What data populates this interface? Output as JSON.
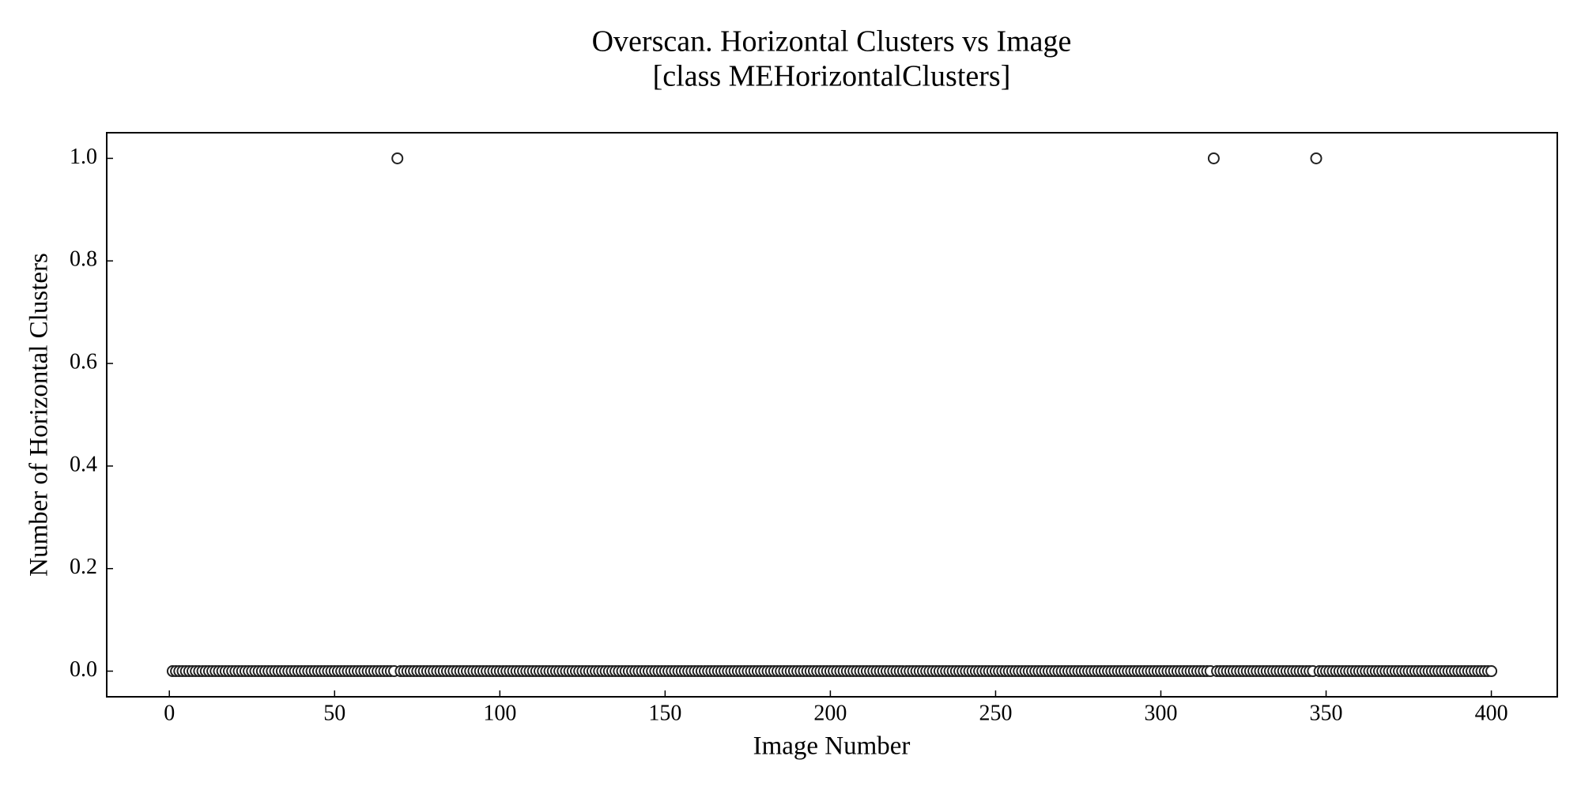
{
  "chart_data": {
    "type": "scatter",
    "title": "Overscan. Horizontal Clusters vs Image",
    "subtitle": "[class MEHorizontalClusters]",
    "x_label": "Image Number",
    "y_label": "Number of Horizontal Clusters",
    "marker_edge_color": "#222222",
    "marker_face_color": "#ffffff",
    "x": [
      1,
      2,
      3,
      4,
      5,
      6,
      7,
      8,
      9,
      10,
      11,
      12,
      13,
      14,
      15,
      16,
      17,
      18,
      19,
      20,
      21,
      22,
      23,
      24,
      25,
      26,
      27,
      28,
      29,
      30,
      31,
      32,
      33,
      34,
      35,
      36,
      37,
      38,
      39,
      40,
      41,
      42,
      43,
      44,
      45,
      46,
      47,
      48,
      49,
      50,
      51,
      52,
      53,
      54,
      55,
      56,
      57,
      58,
      59,
      60,
      61,
      62,
      63,
      64,
      65,
      66,
      67,
      68,
      69,
      70,
      71,
      72,
      73,
      74,
      75,
      76,
      77,
      78,
      79,
      80,
      81,
      82,
      83,
      84,
      85,
      86,
      87,
      88,
      89,
      90,
      91,
      92,
      93,
      94,
      95,
      96,
      97,
      98,
      99,
      100,
      101,
      102,
      103,
      104,
      105,
      106,
      107,
      108,
      109,
      110,
      111,
      112,
      113,
      114,
      115,
      116,
      117,
      118,
      119,
      120,
      121,
      122,
      123,
      124,
      125,
      126,
      127,
      128,
      129,
      130,
      131,
      132,
      133,
      134,
      135,
      136,
      137,
      138,
      139,
      140,
      141,
      142,
      143,
      144,
      145,
      146,
      147,
      148,
      149,
      150,
      151,
      152,
      153,
      154,
      155,
      156,
      157,
      158,
      159,
      160,
      161,
      162,
      163,
      164,
      165,
      166,
      167,
      168,
      169,
      170,
      171,
      172,
      173,
      174,
      175,
      176,
      177,
      178,
      179,
      180,
      181,
      182,
      183,
      184,
      185,
      186,
      187,
      188,
      189,
      190,
      191,
      192,
      193,
      194,
      195,
      196,
      197,
      198,
      199,
      200,
      201,
      202,
      203,
      204,
      205,
      206,
      207,
      208,
      209,
      210,
      211,
      212,
      213,
      214,
      215,
      216,
      217,
      218,
      219,
      220,
      221,
      222,
      223,
      224,
      225,
      226,
      227,
      228,
      229,
      230,
      231,
      232,
      233,
      234,
      235,
      236,
      237,
      238,
      239,
      240,
      241,
      242,
      243,
      244,
      245,
      246,
      247,
      248,
      249,
      250,
      251,
      252,
      253,
      254,
      255,
      256,
      257,
      258,
      259,
      260,
      261,
      262,
      263,
      264,
      265,
      266,
      267,
      268,
      269,
      270,
      271,
      272,
      273,
      274,
      275,
      276,
      277,
      278,
      279,
      280,
      281,
      282,
      283,
      284,
      285,
      286,
      287,
      288,
      289,
      290,
      291,
      292,
      293,
      294,
      295,
      296,
      297,
      298,
      299,
      300,
      301,
      302,
      303,
      304,
      305,
      306,
      307,
      308,
      309,
      310,
      311,
      312,
      313,
      314,
      315,
      316,
      317,
      318,
      319,
      320,
      321,
      322,
      323,
      324,
      325,
      326,
      327,
      328,
      329,
      330,
      331,
      332,
      333,
      334,
      335,
      336,
      337,
      338,
      339,
      340,
      341,
      342,
      343,
      344,
      345,
      346,
      347,
      348,
      349,
      350,
      351,
      352,
      353,
      354,
      355,
      356,
      357,
      358,
      359,
      360,
      361,
      362,
      363,
      364,
      365,
      366,
      367,
      368,
      369,
      370,
      371,
      372,
      373,
      374,
      375,
      376,
      377,
      378,
      379,
      380,
      381,
      382,
      383,
      384,
      385,
      386,
      387,
      388,
      389,
      390,
      391,
      392,
      393,
      394,
      395,
      396,
      397,
      398,
      399,
      400
    ],
    "values": [
      0,
      0,
      0,
      0,
      0,
      0,
      0,
      0,
      0,
      0,
      0,
      0,
      0,
      0,
      0,
      0,
      0,
      0,
      0,
      0,
      0,
      0,
      0,
      0,
      0,
      0,
      0,
      0,
      0,
      0,
      0,
      0,
      0,
      0,
      0,
      0,
      0,
      0,
      0,
      0,
      0,
      0,
      0,
      0,
      0,
      0,
      0,
      0,
      0,
      0,
      0,
      0,
      0,
      0,
      0,
      0,
      0,
      0,
      0,
      0,
      0,
      0,
      0,
      0,
      0,
      0,
      0,
      0,
      1,
      0,
      0,
      0,
      0,
      0,
      0,
      0,
      0,
      0,
      0,
      0,
      0,
      0,
      0,
      0,
      0,
      0,
      0,
      0,
      0,
      0,
      0,
      0,
      0,
      0,
      0,
      0,
      0,
      0,
      0,
      0,
      0,
      0,
      0,
      0,
      0,
      0,
      0,
      0,
      0,
      0,
      0,
      0,
      0,
      0,
      0,
      0,
      0,
      0,
      0,
      0,
      0,
      0,
      0,
      0,
      0,
      0,
      0,
      0,
      0,
      0,
      0,
      0,
      0,
      0,
      0,
      0,
      0,
      0,
      0,
      0,
      0,
      0,
      0,
      0,
      0,
      0,
      0,
      0,
      0,
      0,
      0,
      0,
      0,
      0,
      0,
      0,
      0,
      0,
      0,
      0,
      0,
      0,
      0,
      0,
      0,
      0,
      0,
      0,
      0,
      0,
      0,
      0,
      0,
      0,
      0,
      0,
      0,
      0,
      0,
      0,
      0,
      0,
      0,
      0,
      0,
      0,
      0,
      0,
      0,
      0,
      0,
      0,
      0,
      0,
      0,
      0,
      0,
      0,
      0,
      0,
      0,
      0,
      0,
      0,
      0,
      0,
      0,
      0,
      0,
      0,
      0,
      0,
      0,
      0,
      0,
      0,
      0,
      0,
      0,
      0,
      0,
      0,
      0,
      0,
      0,
      0,
      0,
      0,
      0,
      0,
      0,
      0,
      0,
      0,
      0,
      0,
      0,
      0,
      0,
      0,
      0,
      0,
      0,
      0,
      0,
      0,
      0,
      0,
      0,
      0,
      0,
      0,
      0,
      0,
      0,
      0,
      0,
      0,
      0,
      0,
      0,
      0,
      0,
      0,
      0,
      0,
      0,
      0,
      0,
      0,
      0,
      0,
      0,
      0,
      0,
      0,
      0,
      0,
      0,
      0,
      0,
      0,
      0,
      0,
      0,
      0,
      0,
      0,
      0,
      0,
      0,
      0,
      0,
      0,
      0,
      0,
      0,
      0,
      0,
      0,
      0,
      0,
      0,
      0,
      0,
      0,
      0,
      0,
      0,
      0,
      0,
      0,
      0,
      0,
      0,
      1,
      0,
      0,
      0,
      0,
      0,
      0,
      0,
      0,
      0,
      0,
      0,
      0,
      0,
      0,
      0,
      0,
      0,
      0,
      0,
      0,
      0,
      0,
      0,
      0,
      0,
      0,
      0,
      0,
      0,
      0,
      1,
      0,
      0,
      0,
      0,
      0,
      0,
      0,
      0,
      0,
      0,
      0,
      0,
      0,
      0,
      0,
      0,
      0,
      0,
      0,
      0,
      0,
      0,
      0,
      0,
      0,
      0,
      0,
      0,
      0,
      0,
      0,
      0,
      0,
      0,
      0,
      0,
      0,
      0,
      0,
      0,
      0,
      0,
      0,
      0,
      0,
      0,
      0,
      0,
      0,
      0,
      0,
      0,
      0
    ],
    "xlim": [
      -18.95,
      419.95
    ],
    "xticks": [
      0,
      50,
      100,
      150,
      200,
      250,
      300,
      350,
      400
    ],
    "ylim": [
      -0.05,
      1.05
    ],
    "yticks": [
      {
        "value": 0,
        "label": "0.0"
      },
      0.2,
      0.4,
      0.6,
      0.8,
      {
        "value": 1,
        "label": "1.0"
      }
    ]
  }
}
